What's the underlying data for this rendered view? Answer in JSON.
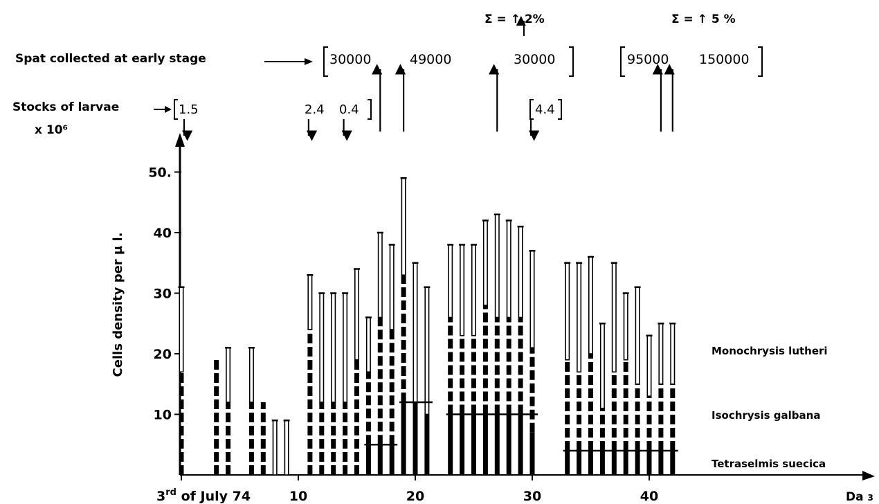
{
  "chart_data": {
    "type": "bar",
    "stacked": true,
    "ylabel": "Cells density per µ l.",
    "ylim": [
      0,
      50
    ],
    "yticks": [
      "10",
      "20",
      "30",
      "40",
      "50."
    ],
    "xlim": [
      0,
      45
    ],
    "xticks": [
      {
        "day": 0,
        "label": "3rd of July 74"
      },
      {
        "day": 10,
        "label": "10"
      },
      {
        "day": 20,
        "label": "20"
      },
      {
        "day": 30,
        "label": "30"
      },
      {
        "day": 40,
        "label": "40"
      }
    ],
    "xlabel": "Da 3",
    "series": [
      {
        "name": "Tetraselmis suecica",
        "pattern": "solid"
      },
      {
        "name": "Isochrysis galbana",
        "pattern": "dashed"
      },
      {
        "name": "Monochrysis lutheri",
        "pattern": "open"
      }
    ],
    "bars": [
      {
        "day": 0,
        "t": 0,
        "i": 17,
        "m": 31
      },
      {
        "day": 3,
        "t": 0,
        "i": 19,
        "m": 19
      },
      {
        "day": 4,
        "t": 0,
        "i": 12,
        "m": 21
      },
      {
        "day": 6,
        "t": 0,
        "i": 12,
        "m": 21
      },
      {
        "day": 7,
        "t": 0,
        "i": 12,
        "m": 12
      },
      {
        "day": 8,
        "t": 0,
        "i": 0,
        "m": 9
      },
      {
        "day": 9,
        "t": 0,
        "i": 0,
        "m": 9
      },
      {
        "day": 11,
        "t": 0,
        "i": 24,
        "m": 33
      },
      {
        "day": 12,
        "t": 0,
        "i": 12,
        "m": 30
      },
      {
        "day": 13,
        "t": 0,
        "i": 12,
        "m": 30
      },
      {
        "day": 14,
        "t": 0,
        "i": 12,
        "m": 30
      },
      {
        "day": 15,
        "t": 0,
        "i": 19,
        "m": 34
      },
      {
        "day": 16,
        "t": 5,
        "i": 17,
        "m": 26
      },
      {
        "day": 17,
        "t": 5,
        "i": 26,
        "m": 40
      },
      {
        "day": 18,
        "t": 5,
        "i": 24,
        "m": 38
      },
      {
        "day": 19,
        "t": 12,
        "i": 33,
        "m": 49
      },
      {
        "day": 20,
        "t": 12,
        "i": 12,
        "m": 35
      },
      {
        "day": 21,
        "t": 10,
        "i": 10,
        "m": 31
      },
      {
        "day": 23,
        "t": 10,
        "i": 26,
        "m": 38
      },
      {
        "day": 24,
        "t": 10,
        "i": 23,
        "m": 38
      },
      {
        "day": 25,
        "t": 10,
        "i": 23,
        "m": 38
      },
      {
        "day": 26,
        "t": 10,
        "i": 28,
        "m": 42
      },
      {
        "day": 27,
        "t": 10,
        "i": 26,
        "m": 43
      },
      {
        "day": 28,
        "t": 10,
        "i": 26,
        "m": 42
      },
      {
        "day": 29,
        "t": 10,
        "i": 26,
        "m": 41
      },
      {
        "day": 30,
        "t": 7,
        "i": 21,
        "m": 37
      },
      {
        "day": 33,
        "t": 4,
        "i": 19,
        "m": 35
      },
      {
        "day": 34,
        "t": 4,
        "i": 17,
        "m": 35
      },
      {
        "day": 35,
        "t": 4,
        "i": 20,
        "m": 36
      },
      {
        "day": 36,
        "t": 4,
        "i": 11,
        "m": 25
      },
      {
        "day": 37,
        "t": 4,
        "i": 17,
        "m": 35
      },
      {
        "day": 38,
        "t": 4,
        "i": 19,
        "m": 30
      },
      {
        "day": 39,
        "t": 4,
        "i": 15,
        "m": 31
      },
      {
        "day": 40,
        "t": 4,
        "i": 13,
        "m": 23
      },
      {
        "day": 41,
        "t": 4,
        "i": 15,
        "m": 25
      },
      {
        "day": 42,
        "t": 4,
        "i": 15,
        "m": 25
      }
    ],
    "spat": {
      "label": "Spat collected at early stage",
      "values": [
        "30000",
        "49000",
        "30000",
        "95000",
        "150000"
      ],
      "arrow_days": [
        17,
        19,
        27,
        41,
        42
      ],
      "sums": [
        "Σ = ↑ 2%",
        "Σ = ↑ 5 %"
      ]
    },
    "larvae": {
      "label": "Stocks of larvae",
      "unit": "x 10⁶",
      "values": [
        {
          "day": 0,
          "text": "1.5"
        },
        {
          "day": 11,
          "text": "2.4"
        },
        {
          "day": 14,
          "text": "0.4"
        },
        {
          "day": 30,
          "text": "4.4"
        }
      ]
    }
  }
}
